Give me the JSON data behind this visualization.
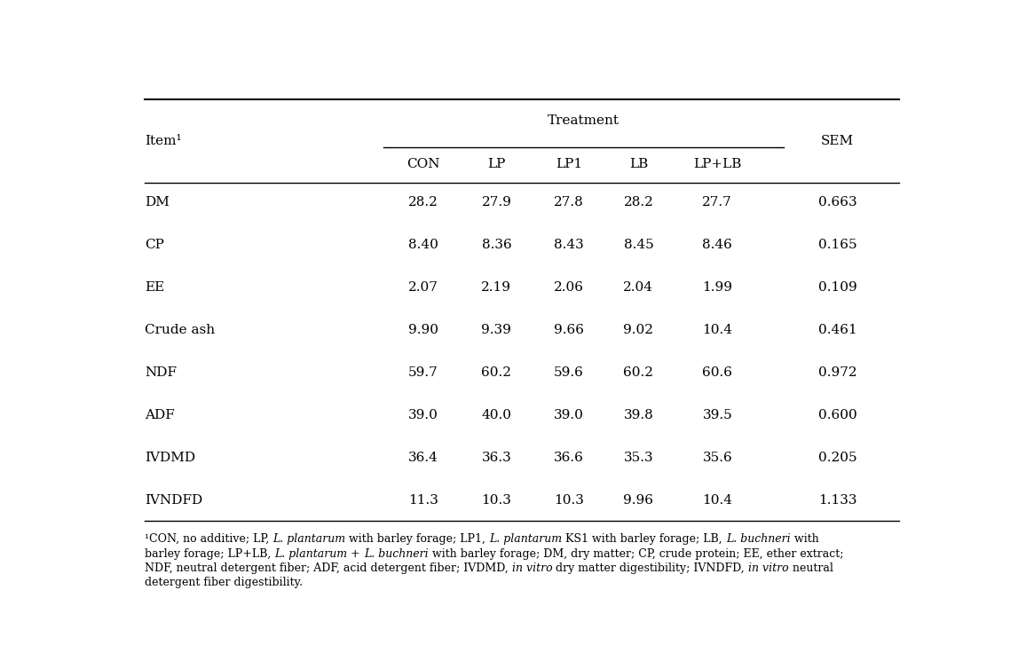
{
  "rows": [
    {
      "item": "DM",
      "CON": "28.2",
      "LP": "27.9",
      "LP1": "27.8",
      "LB": "28.2",
      "LP+LB": "27.7",
      "SEM": "0.663"
    },
    {
      "item": "CP",
      "CON": "8.40",
      "LP": "8.36",
      "LP1": "8.43",
      "LB": "8.45",
      "LP+LB": "8.46",
      "SEM": "0.165"
    },
    {
      "item": "EE",
      "CON": "2.07",
      "LP": "2.19",
      "LP1": "2.06",
      "LB": "2.04",
      "LP+LB": "1.99",
      "SEM": "0.109"
    },
    {
      "item": "Crude ash",
      "CON": "9.90",
      "LP": "9.39",
      "LP1": "9.66",
      "LB": "9.02",
      "LP+LB": "10.4",
      "SEM": "0.461"
    },
    {
      "item": "NDF",
      "CON": "59.7",
      "LP": "60.2",
      "LP1": "59.6",
      "LB": "60.2",
      "LP+LB": "60.6",
      "SEM": "0.972"
    },
    {
      "item": "ADF",
      "CON": "39.0",
      "LP": "40.0",
      "LP1": "39.0",
      "LB": "39.8",
      "LP+LB": "39.5",
      "SEM": "0.600"
    },
    {
      "item": "IVDMD",
      "CON": "36.4",
      "LP": "36.3",
      "LP1": "36.6",
      "LB": "35.3",
      "LP+LB": "35.6",
      "SEM": "0.205"
    },
    {
      "item": "IVNDFD",
      "CON": "11.3",
      "LP": "10.3",
      "LP1": "10.3",
      "LB": "9.96",
      "LP+LB": "10.4",
      "SEM": "1.133"
    }
  ],
  "font_size": 11,
  "footnote_font_size": 9.0,
  "line1_segs": [
    [
      "¹CON, no additive; LP, ",
      false
    ],
    [
      "L. plantarum",
      true
    ],
    [
      " with barley forage; LP1, ",
      false
    ],
    [
      "L. plantarum",
      true
    ],
    [
      " KS1 with barley forage; LB, ",
      false
    ],
    [
      "L. buchneri",
      true
    ],
    [
      " with",
      false
    ]
  ],
  "line2_segs": [
    [
      "barley forage; LP+LB, ",
      false
    ],
    [
      "L. plantarum",
      true
    ],
    [
      " + ",
      false
    ],
    [
      "L. buchneri",
      true
    ],
    [
      " with barley forage; DM, dry matter; CP, crude protein; EE, ether extract;",
      false
    ]
  ],
  "line3_segs": [
    [
      "NDF, neutral detergent fiber; ADF, acid detergent fiber; IVDMD, ",
      false
    ],
    [
      "in vitro",
      true
    ],
    [
      " dry matter digestibility; IVNDFD, ",
      false
    ],
    [
      "in vitro",
      true
    ],
    [
      " neutral",
      false
    ]
  ],
  "line4_segs": [
    [
      "detergent fiber digestibility.",
      false
    ]
  ]
}
